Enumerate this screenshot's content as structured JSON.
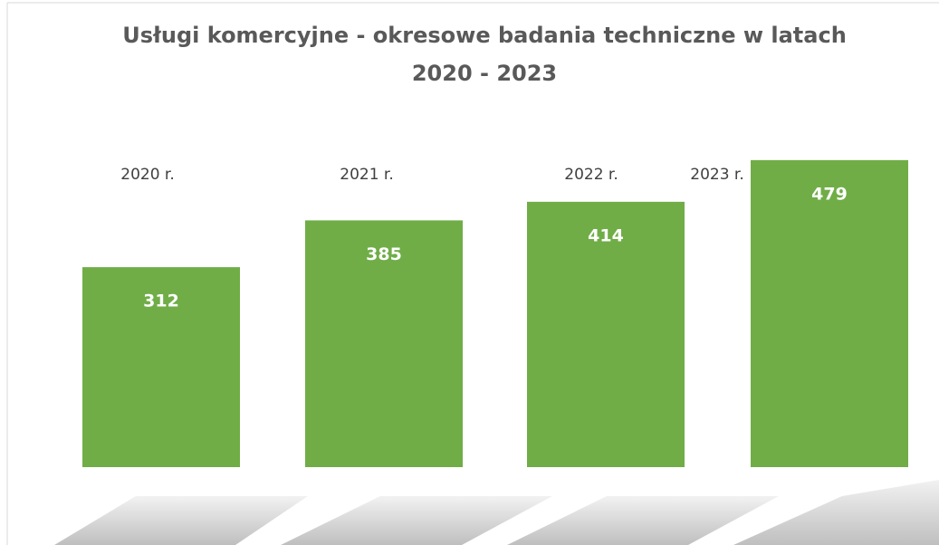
{
  "chart_data": {
    "type": "bar",
    "title": "Usługi komercyjne - okresowe badania techniczne w latach 2020 - 2023",
    "categories": [
      "2020 r.",
      "2021 r.",
      "2022 r.",
      "2023 r."
    ],
    "values": [
      312,
      385,
      414,
      479
    ],
    "color": "#70ad47",
    "ylim": [
      0,
      500
    ]
  }
}
